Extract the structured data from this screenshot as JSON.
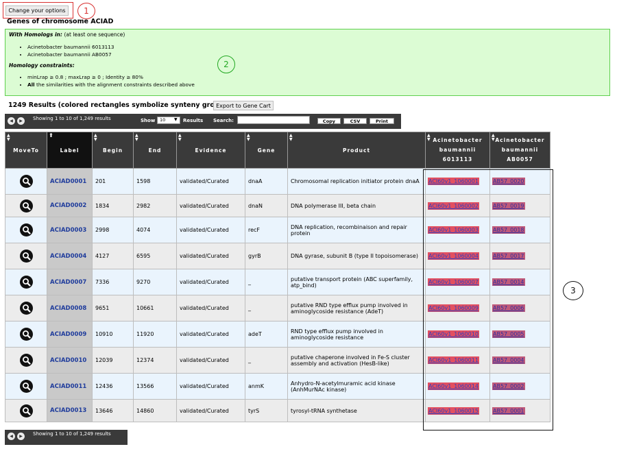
{
  "header": {
    "options_button": "Change your options",
    "title": "Genes of chromosome ACIAD"
  },
  "annotations": [
    "1",
    "2",
    "3"
  ],
  "homologs": {
    "heading": "With Homologs in:",
    "heading_note": "(at least one sequence)",
    "items": [
      "Acinetobacter baumannii 6013113",
      "Acinetobacter baumannii AB0057"
    ]
  },
  "constraints": {
    "heading": "Homology constraints:",
    "line1": "minLrap ≥ 0.8 ; maxLrap ≥ 0 ; Identity ≥ 80%",
    "line2_bold": "All",
    "line2_rest": " the similarities with the alignment constraints described above"
  },
  "results": {
    "title": "1249 Results (colored rectangles symbolize synteny groups)",
    "export_button": "Export to Gene Cart"
  },
  "toolbar": {
    "showing": "Showing 1 to 10 of 1,249 results",
    "show_label": "Show",
    "show_value": "10",
    "results_label": "Results",
    "search_label": "Search:",
    "search_value": "",
    "copy": "Copy",
    "csv": "CSV",
    "print": "Print"
  },
  "footer": {
    "showing": "Showing 1 to 10 of 1,249 results"
  },
  "columns": {
    "moveto": "MoveTo",
    "label": "Label",
    "begin": "Begin",
    "end": "End",
    "evidence": "Evidence",
    "gene": "Gene",
    "product": "Product",
    "org1_l1": "Acinetobacter",
    "org1_l2": "baumannii",
    "org1_l3": "6013113",
    "org2_l1": "Acinetobacter",
    "org2_l2": "baumannii",
    "org2_l3": "AB0057"
  },
  "rows": [
    {
      "label": "ACIAD0001",
      "begin": "201",
      "end": "1598",
      "evidence": "validated/Curated",
      "gene": "dnaA",
      "product": "Chromosomal replication initiator protein dnaA",
      "h1": "ACI60v1_1060001",
      "h2": "AB57_0020"
    },
    {
      "label": "ACIAD0002",
      "begin": "1834",
      "end": "2982",
      "evidence": "validated/Curated",
      "gene": "dnaN",
      "product": "DNA polymerase III, beta chain",
      "h1": "ACI60v1_1060002",
      "h2": "AB57_0019"
    },
    {
      "label": "ACIAD0003",
      "begin": "2998",
      "end": "4074",
      "evidence": "validated/Curated",
      "gene": "recF",
      "product": "DNA replication, recombinaison and repair protein",
      "h1": "ACI60v1_1060003",
      "h2": "AB57_0018"
    },
    {
      "label": "ACIAD0004",
      "begin": "4127",
      "end": "6595",
      "evidence": "validated/Curated",
      "gene": "gyrB",
      "product": "DNA gyrase, subunit B (type II topoisomerase)",
      "h1": "ACI60v1_1060004",
      "h2": "AB57_0017"
    },
    {
      "label": "ACIAD0007",
      "begin": "7336",
      "end": "9270",
      "evidence": "validated/Curated",
      "gene": "_",
      "product": "putative transport protein (ABC superfamily, atp_bind)",
      "h1": "ACI60v1_1060007",
      "h2": "AB57_0014"
    },
    {
      "label": "ACIAD0008",
      "begin": "9651",
      "end": "10661",
      "evidence": "validated/Curated",
      "gene": "_",
      "product": "putative RND type efflux pump involved in aminoglycoside resistance (AdeT)",
      "h1": "ACI60v1_1060009",
      "h2": "AB57_0006"
    },
    {
      "label": "ACIAD0009",
      "begin": "10910",
      "end": "11920",
      "evidence": "validated/Curated",
      "gene": "adeT",
      "product": "RND type efflux pump involved in aminoglycoside resistance",
      "h1": "ACI60v1_1060010",
      "h2": "AB57_0005"
    },
    {
      "label": "ACIAD0010",
      "begin": "12039",
      "end": "12374",
      "evidence": "validated/Curated",
      "gene": "_",
      "product": "putative chaperone involved in Fe-S cluster assembly and activation (HesB-like)",
      "h1": "ACI60v1_1060011",
      "h2": "AB57_0004"
    },
    {
      "label": "ACIAD0011",
      "begin": "12436",
      "end": "13566",
      "evidence": "validated/Curated",
      "gene": "anmK",
      "product": "Anhydro-N-acetylmuramic acid kinase (AnhMurNAc kinase)",
      "h1": "ACI60v1_1060014",
      "h2": "AB57_0002"
    },
    {
      "label": "ACIAD0013",
      "begin": "13646",
      "end": "14860",
      "evidence": "validated/Curated",
      "gene": "tyrS",
      "product": "tyrosyl-tRNA synthetase",
      "h1": "ACI60v1_1060015",
      "h2": "AB57_0001"
    }
  ]
}
